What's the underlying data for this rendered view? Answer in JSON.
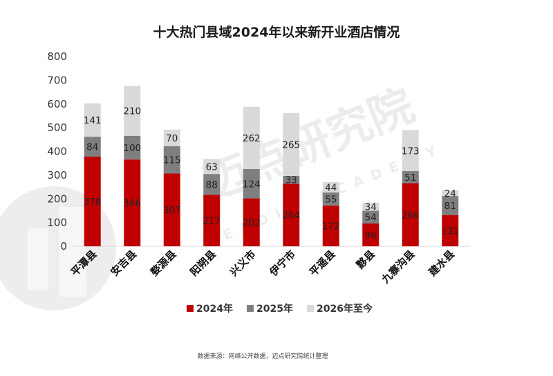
{
  "chart_data": {
    "type": "bar",
    "stacked": true,
    "title": "十大热门县域2024年以来新开业酒店情况",
    "xlabel": "",
    "ylabel": "",
    "ylim": [
      0,
      800
    ],
    "yticks": [
      0,
      100,
      200,
      300,
      400,
      500,
      600,
      700,
      800
    ],
    "grid": false,
    "legend_position": "bottom",
    "categories": [
      "平潭县",
      "安吉县",
      "婺源县",
      "阳朔县",
      "兴义市",
      "伊宁市",
      "平遥县",
      "黟县",
      "九寨沟县",
      "建水县"
    ],
    "series": [
      {
        "name": "2024年",
        "color": "#c00000",
        "values": [
          378,
          366,
          307,
          217,
          202,
          264,
          172,
          96,
          266,
          131
        ]
      },
      {
        "name": "2025年",
        "color": "#7f7f7f",
        "values": [
          84,
          100,
          115,
          88,
          124,
          33,
          55,
          54,
          51,
          81
        ]
      },
      {
        "name": "2026年至今",
        "color": "#d9d9d9",
        "values": [
          141,
          210,
          70,
          63,
          262,
          265,
          44,
          34,
          173,
          24
        ]
      }
    ],
    "source": "数据来源：网络公开数据，迈点研究院统计整理"
  },
  "watermark": {
    "text": "迈点研究院",
    "subtext": "MEADIN ACADEMY",
    "logo": "迈点"
  }
}
